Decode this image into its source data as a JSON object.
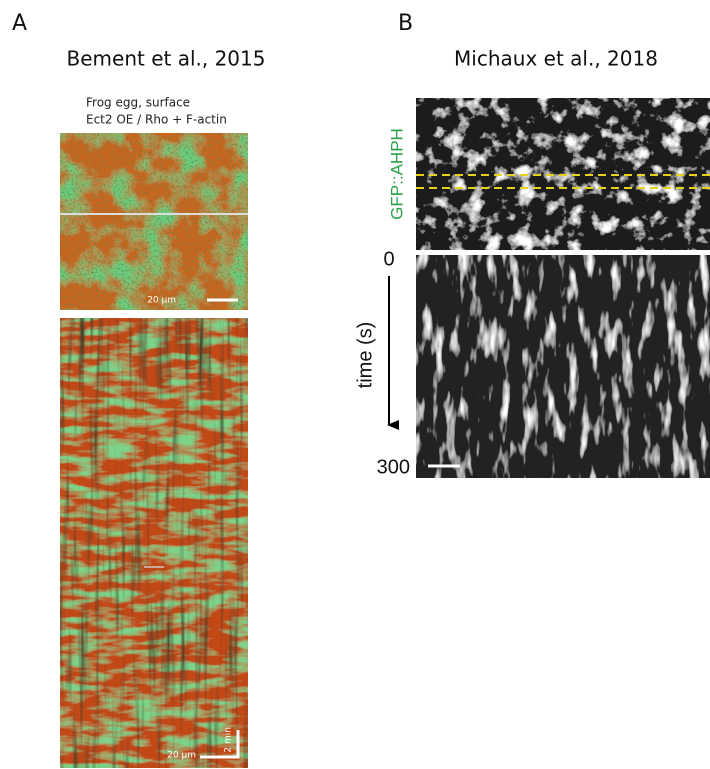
{
  "panels": [
    {
      "label": "A",
      "citation": "Bement et al., 2015",
      "caption_lines": [
        "Frog egg, surface",
        "Ect2 OE / Rho + F-actin"
      ],
      "scale_bars": [
        "20 µm",
        "20 µm"
      ],
      "time_bar": "2 min"
    },
    {
      "label": "B",
      "citation": "Michaux et al., 2018",
      "channel": "GFP::AHPH",
      "axis_label": "time (s)",
      "axis_start": "0",
      "axis_end": "300"
    }
  ]
}
